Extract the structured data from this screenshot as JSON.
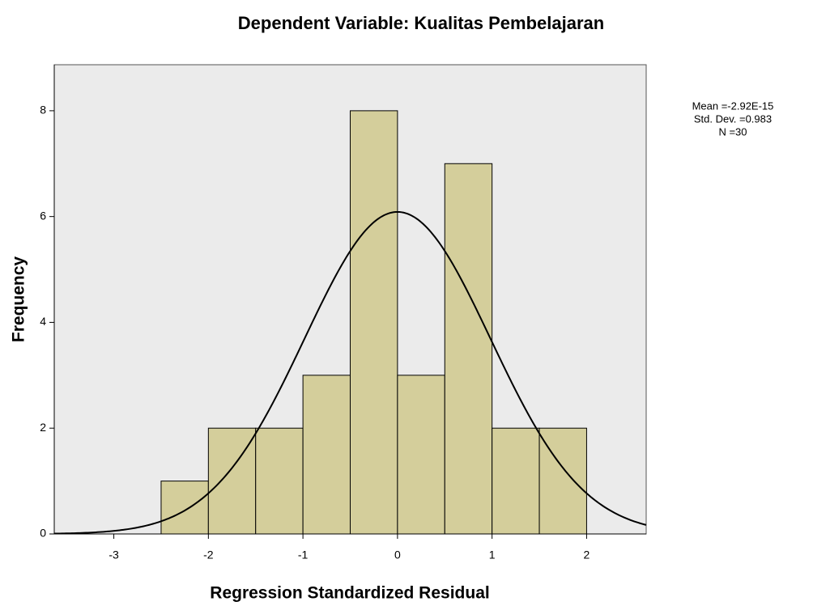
{
  "chart_data": {
    "type": "histogram",
    "title": "Dependent Variable: Kualitas Pembelajaran",
    "x_label": "Regression Standardized Residual",
    "y_label": "Frequency",
    "bins": [
      -2.5,
      -2,
      -1.5,
      -1,
      -0.5,
      0,
      0.5,
      1,
      1.5,
      2
    ],
    "values": [
      1,
      2,
      2,
      3,
      8,
      3,
      7,
      2,
      2
    ],
    "color": "#d4ce9b",
    "background": "#ebebeb",
    "xlim": [
      -3.63,
      2.63
    ],
    "xticks": [
      -3,
      -2,
      -1,
      0,
      1,
      2
    ],
    "ylim": [
      0,
      8.87
    ],
    "yticks": [
      0,
      2,
      4,
      6,
      8
    ],
    "normal_curve": true,
    "stats": [
      {
        "value": -2.92e-15,
        "label": "Mean =-2.92E-15"
      },
      {
        "value": 0.983,
        "label": "Std. Dev. =0.983"
      },
      {
        "value": 30,
        "label": "N =30"
      }
    ]
  }
}
